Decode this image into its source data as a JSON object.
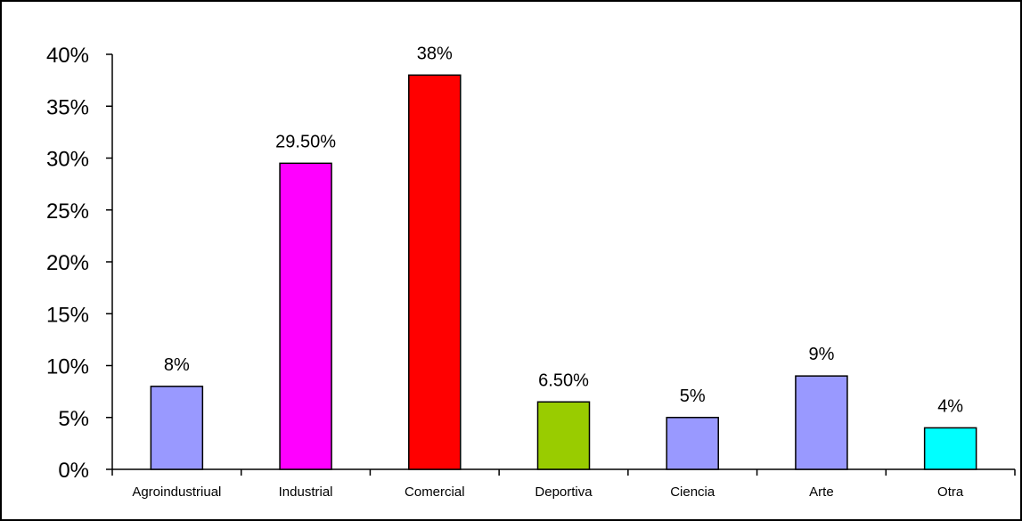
{
  "chart_data": {
    "type": "bar",
    "categories": [
      "Agroindustriual",
      "Industrial",
      "Comercial",
      "Deportiva",
      "Ciencia",
      "Arte",
      "Otra"
    ],
    "values": [
      8,
      29.5,
      38,
      6.5,
      5,
      9,
      4
    ],
    "data_labels": [
      "8%",
      "29.50%",
      "38%",
      "6.50%",
      "5%",
      "9%",
      "4%"
    ],
    "colors": [
      "#9999FF",
      "#FF00FF",
      "#FF0000",
      "#99CC00",
      "#9999FF",
      "#9999FF",
      "#00FFFF"
    ],
    "yticks": [
      0,
      5,
      10,
      15,
      20,
      25,
      30,
      35,
      40
    ],
    "ytick_labels": [
      "0%",
      "5%",
      "10%",
      "15%",
      "20%",
      "25%",
      "30%",
      "35%",
      "40%"
    ],
    "ylim": [
      0,
      40
    ],
    "grid": false,
    "legend": "none"
  }
}
